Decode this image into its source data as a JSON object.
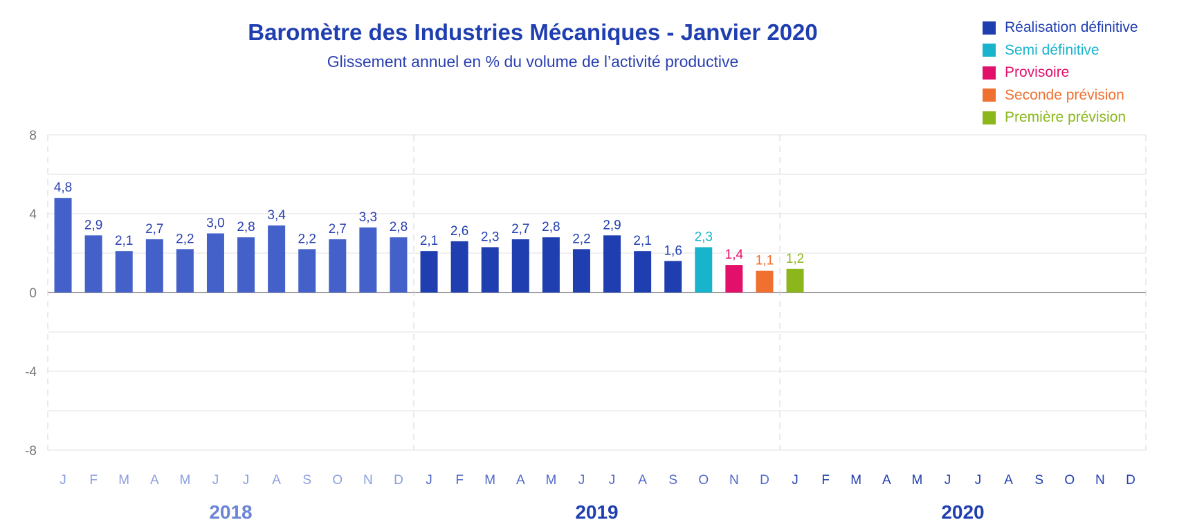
{
  "chart_data": {
    "type": "bar",
    "title": "Baromètre des Industries Mécaniques - Janvier 2020",
    "subtitle": "Glissement annuel en % du volume de l’activité productive",
    "ylim": [
      -8,
      8
    ],
    "yticks": [
      {
        "value": 8,
        "label": "8"
      },
      {
        "value": 4,
        "label": "4"
      },
      {
        "value": 0,
        "label": "0"
      },
      {
        "value": -4,
        "label": "-4"
      },
      {
        "value": -8,
        "label": "-8"
      }
    ],
    "grid": true,
    "legend_position": "top-right",
    "years": [
      {
        "label": "2018",
        "color": "#6a84d6"
      },
      {
        "label": "2019",
        "color": "#1f3eb0"
      },
      {
        "label": "2020",
        "color": "#1f3eb0"
      }
    ],
    "month_labels": [
      "J",
      "F",
      "M",
      "A",
      "M",
      "J",
      "J",
      "A",
      "S",
      "O",
      "N",
      "D"
    ],
    "month_label_colors": [
      "#8a9ee0",
      "#5068c8",
      "#1f3eb0"
    ],
    "series": [
      {
        "name": "Réalisation définitive",
        "color": "#1f3eb0",
        "legend_text_color": "#1f3eb0"
      },
      {
        "name": "Semi définitive",
        "color": "#17b4cc",
        "legend_text_color": "#17b4cc"
      },
      {
        "name": "Provisoire",
        "color": "#e3106b",
        "legend_text_color": "#e3106b"
      },
      {
        "name": "Seconde prévision",
        "color": "#f07030",
        "legend_text_color": "#f07030"
      },
      {
        "name": "Première prévision",
        "color": "#8bb71c",
        "legend_text_color": "#8bb71c"
      }
    ],
    "points": [
      {
        "year": "2018",
        "month": "J",
        "value": 4.8,
        "label": "4,8",
        "series": 0,
        "bar_color": "#4460c9",
        "label_color": "#2a3fb1"
      },
      {
        "year": "2018",
        "month": "F",
        "value": 2.9,
        "label": "2,9",
        "series": 0,
        "bar_color": "#4460c9",
        "label_color": "#2a3fb1"
      },
      {
        "year": "2018",
        "month": "M",
        "value": 2.1,
        "label": "2,1",
        "series": 0,
        "bar_color": "#4460c9",
        "label_color": "#2a3fb1"
      },
      {
        "year": "2018",
        "month": "A",
        "value": 2.7,
        "label": "2,7",
        "series": 0,
        "bar_color": "#4460c9",
        "label_color": "#2a3fb1"
      },
      {
        "year": "2018",
        "month": "M",
        "value": 2.2,
        "label": "2,2",
        "series": 0,
        "bar_color": "#4460c9",
        "label_color": "#2a3fb1"
      },
      {
        "year": "2018",
        "month": "J",
        "value": 3.0,
        "label": "3,0",
        "series": 0,
        "bar_color": "#4460c9",
        "label_color": "#2a3fb1"
      },
      {
        "year": "2018",
        "month": "J",
        "value": 2.8,
        "label": "2,8",
        "series": 0,
        "bar_color": "#4460c9",
        "label_color": "#2a3fb1"
      },
      {
        "year": "2018",
        "month": "A",
        "value": 3.4,
        "label": "3,4",
        "series": 0,
        "bar_color": "#4460c9",
        "label_color": "#2a3fb1"
      },
      {
        "year": "2018",
        "month": "S",
        "value": 2.2,
        "label": "2,2",
        "series": 0,
        "bar_color": "#4460c9",
        "label_color": "#2a3fb1"
      },
      {
        "year": "2018",
        "month": "O",
        "value": 2.7,
        "label": "2,7",
        "series": 0,
        "bar_color": "#4460c9",
        "label_color": "#2a3fb1"
      },
      {
        "year": "2018",
        "month": "N",
        "value": 3.3,
        "label": "3,3",
        "series": 0,
        "bar_color": "#4460c9",
        "label_color": "#2a3fb1"
      },
      {
        "year": "2018",
        "month": "D",
        "value": 2.8,
        "label": "2,8",
        "series": 0,
        "bar_color": "#4460c9",
        "label_color": "#2a3fb1"
      },
      {
        "year": "2019",
        "month": "J",
        "value": 2.1,
        "label": "2,1",
        "series": 0,
        "bar_color": "#1f3eb0",
        "label_color": "#1f3eb0"
      },
      {
        "year": "2019",
        "month": "F",
        "value": 2.6,
        "label": "2,6",
        "series": 0,
        "bar_color": "#1f3eb0",
        "label_color": "#1f3eb0"
      },
      {
        "year": "2019",
        "month": "M",
        "value": 2.3,
        "label": "2,3",
        "series": 0,
        "bar_color": "#1f3eb0",
        "label_color": "#1f3eb0"
      },
      {
        "year": "2019",
        "month": "A",
        "value": 2.7,
        "label": "2,7",
        "series": 0,
        "bar_color": "#1f3eb0",
        "label_color": "#1f3eb0"
      },
      {
        "year": "2019",
        "month": "M",
        "value": 2.8,
        "label": "2,8",
        "series": 0,
        "bar_color": "#1f3eb0",
        "label_color": "#1f3eb0"
      },
      {
        "year": "2019",
        "month": "J",
        "value": 2.2,
        "label": "2,2",
        "series": 0,
        "bar_color": "#1f3eb0",
        "label_color": "#1f3eb0"
      },
      {
        "year": "2019",
        "month": "J",
        "value": 2.9,
        "label": "2,9",
        "series": 0,
        "bar_color": "#1f3eb0",
        "label_color": "#1f3eb0"
      },
      {
        "year": "2019",
        "month": "A",
        "value": 2.1,
        "label": "2,1",
        "series": 0,
        "bar_color": "#1f3eb0",
        "label_color": "#1f3eb0"
      },
      {
        "year": "2019",
        "month": "S",
        "value": 1.6,
        "label": "1,6",
        "series": 0,
        "bar_color": "#1f3eb0",
        "label_color": "#1f3eb0"
      },
      {
        "year": "2019",
        "month": "O",
        "value": 2.3,
        "label": "2,3",
        "series": 1,
        "bar_color": "#17b4cc",
        "label_color": "#17b4cc"
      },
      {
        "year": "2019",
        "month": "N",
        "value": 1.4,
        "label": "1,4",
        "series": 2,
        "bar_color": "#e3106b",
        "label_color": "#e3106b"
      },
      {
        "year": "2019",
        "month": "D",
        "value": 1.1,
        "label": "1,1",
        "series": 3,
        "bar_color": "#f07030",
        "label_color": "#f07030"
      },
      {
        "year": "2020",
        "month": "J",
        "value": 1.2,
        "label": "1,2",
        "series": 4,
        "bar_color": "#8bb71c",
        "label_color": "#8bb71c"
      }
    ]
  }
}
